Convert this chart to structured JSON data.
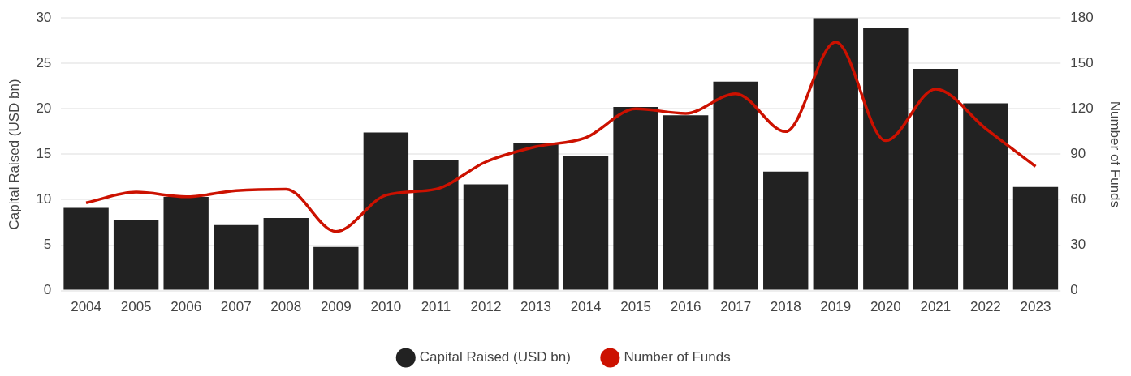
{
  "chart_data": {
    "type": "bar",
    "ylabel": "Capital Raised (USD bn)",
    "y2label": "Number of Funds",
    "categories": [
      "2004",
      "2005",
      "2006",
      "2007",
      "2008",
      "2009",
      "2010",
      "2011",
      "2012",
      "2013",
      "2014",
      "2015",
      "2016",
      "2017",
      "2018",
      "2019",
      "2020",
      "2021",
      "2022",
      "2023"
    ],
    "series": [
      {
        "name": "Capital Raised (USD bn)",
        "color": "#222222",
        "values": [
          9.1,
          7.8,
          10.3,
          7.2,
          8.0,
          4.8,
          17.4,
          14.4,
          11.7,
          16.2,
          14.8,
          20.2,
          19.3,
          23.0,
          13.1,
          30.0,
          28.9,
          24.4,
          20.6,
          11.4
        ]
      },
      {
        "name": "Number of Funds",
        "type": "line",
        "axis": "y2",
        "color": "#cc1100",
        "values": [
          58,
          65,
          62,
          66,
          67,
          39,
          63,
          67,
          85,
          95,
          101,
          120,
          117,
          130,
          105,
          164,
          99,
          133,
          107,
          82
        ]
      }
    ],
    "ylim": [
      0,
      30
    ],
    "yticks": [
      0,
      5,
      10,
      15,
      20,
      25,
      30
    ],
    "y2lim": [
      0,
      180
    ],
    "y2ticks": [
      0,
      30,
      60,
      90,
      120,
      150,
      180
    ],
    "grid": "y",
    "legend": "bottom",
    "marker": "none",
    "line_style": "solid"
  }
}
